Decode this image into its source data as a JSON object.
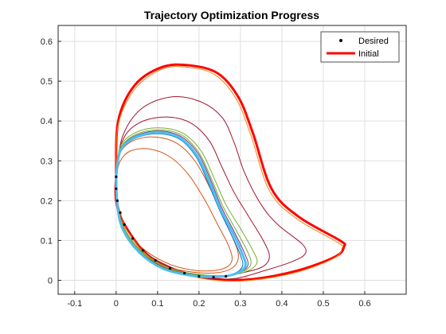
{
  "chart_data": {
    "type": "line",
    "title": "Trajectory Optimization Progress",
    "xlabel": "",
    "ylabel": "",
    "xlim": [
      -0.14,
      0.7
    ],
    "ylim": [
      -0.035,
      0.64
    ],
    "xticks": [
      -0.1,
      0,
      0.1,
      0.2,
      0.3,
      0.4,
      0.5,
      0.6
    ],
    "xtick_labels": [
      "-0.1",
      "0",
      "0.1",
      "0.2",
      "0.3",
      "0.4",
      "0.5",
      "0.6"
    ],
    "yticks": [
      0,
      0.1,
      0.2,
      0.3,
      0.4,
      0.5,
      0.6
    ],
    "ytick_labels": [
      "0",
      "0.1",
      "0.2",
      "0.3",
      "0.4",
      "0.5",
      "0.6"
    ],
    "grid": true,
    "legend": {
      "placement": "top-right",
      "entries": [
        {
          "label": "Desired",
          "marker": "dot",
          "color": "#000000"
        },
        {
          "label": "Initial",
          "marker": "line",
          "color": "#ff0000"
        }
      ]
    },
    "series": [
      {
        "name": "Initial",
        "color": "#ff0000",
        "width": 3,
        "points": [
          [
            0,
            0.26
          ],
          [
            0.005,
            0.4
          ],
          [
            0.045,
            0.49
          ],
          [
            0.11,
            0.535
          ],
          [
            0.175,
            0.54
          ],
          [
            0.245,
            0.52
          ],
          [
            0.295,
            0.46
          ],
          [
            0.33,
            0.37
          ],
          [
            0.375,
            0.23
          ],
          [
            0.44,
            0.16
          ],
          [
            0.54,
            0.1
          ],
          [
            0.55,
            0.085
          ],
          [
            0.53,
            0.06
          ],
          [
            0.44,
            0.025
          ],
          [
            0.33,
            0.003
          ],
          [
            0.24,
            0.003
          ],
          [
            0.16,
            0.02
          ],
          [
            0.08,
            0.06
          ],
          [
            0.02,
            0.14
          ],
          [
            0,
            0.2
          ],
          [
            0,
            0.26
          ]
        ]
      },
      {
        "name": "",
        "color": "#ff7f0e",
        "width": 1,
        "points": [
          [
            0,
            0.26
          ],
          [
            0.005,
            0.39
          ],
          [
            0.045,
            0.48
          ],
          [
            0.11,
            0.53
          ],
          [
            0.175,
            0.535
          ],
          [
            0.24,
            0.515
          ],
          [
            0.29,
            0.455
          ],
          [
            0.325,
            0.365
          ],
          [
            0.37,
            0.225
          ],
          [
            0.435,
            0.155
          ],
          [
            0.535,
            0.095
          ],
          [
            0.545,
            0.08
          ],
          [
            0.525,
            0.055
          ],
          [
            0.435,
            0.02
          ],
          [
            0.325,
            0.0
          ],
          [
            0.24,
            0.0
          ],
          [
            0.16,
            0.017
          ],
          [
            0.08,
            0.058
          ],
          [
            0.02,
            0.138
          ],
          [
            0,
            0.2
          ],
          [
            0,
            0.26
          ]
        ]
      },
      {
        "name": "",
        "color": "#a2142f",
        "width": 1,
        "points": [
          [
            0,
            0.26
          ],
          [
            0.015,
            0.36
          ],
          [
            0.06,
            0.43
          ],
          [
            0.13,
            0.46
          ],
          [
            0.2,
            0.45
          ],
          [
            0.255,
            0.41
          ],
          [
            0.285,
            0.345
          ],
          [
            0.31,
            0.27
          ],
          [
            0.35,
            0.19
          ],
          [
            0.39,
            0.14
          ],
          [
            0.45,
            0.09
          ],
          [
            0.455,
            0.065
          ],
          [
            0.42,
            0.045
          ],
          [
            0.36,
            0.025
          ],
          [
            0.29,
            0.005
          ],
          [
            0.22,
            0.005
          ],
          [
            0.15,
            0.025
          ],
          [
            0.07,
            0.07
          ],
          [
            0.02,
            0.14
          ],
          [
            0,
            0.2
          ],
          [
            0,
            0.26
          ]
        ]
      },
      {
        "name": "",
        "color": "#a2142f",
        "width": 1,
        "points": [
          [
            0,
            0.26
          ],
          [
            0.015,
            0.35
          ],
          [
            0.055,
            0.395
          ],
          [
            0.12,
            0.41
          ],
          [
            0.18,
            0.395
          ],
          [
            0.225,
            0.35
          ],
          [
            0.255,
            0.285
          ],
          [
            0.285,
            0.22
          ],
          [
            0.32,
            0.16
          ],
          [
            0.355,
            0.1
          ],
          [
            0.37,
            0.06
          ],
          [
            0.355,
            0.035
          ],
          [
            0.31,
            0.02
          ],
          [
            0.25,
            0.01
          ],
          [
            0.18,
            0.015
          ],
          [
            0.11,
            0.035
          ],
          [
            0.05,
            0.08
          ],
          [
            0.015,
            0.14
          ],
          [
            0,
            0.2
          ],
          [
            0,
            0.26
          ]
        ]
      },
      {
        "name": "",
        "color": "#d95319",
        "width": 1,
        "points": [
          [
            0,
            0.26
          ],
          [
            0.01,
            0.3
          ],
          [
            0.035,
            0.325
          ],
          [
            0.08,
            0.33
          ],
          [
            0.13,
            0.31
          ],
          [
            0.175,
            0.265
          ],
          [
            0.215,
            0.2
          ],
          [
            0.245,
            0.14
          ],
          [
            0.27,
            0.09
          ],
          [
            0.28,
            0.055
          ],
          [
            0.27,
            0.035
          ],
          [
            0.24,
            0.025
          ],
          [
            0.19,
            0.025
          ],
          [
            0.13,
            0.04
          ],
          [
            0.07,
            0.075
          ],
          [
            0.03,
            0.12
          ],
          [
            0.01,
            0.17
          ],
          [
            0,
            0.22
          ],
          [
            0,
            0.26
          ]
        ]
      },
      {
        "name": "",
        "color": "#d95319",
        "width": 1,
        "points": [
          [
            0,
            0.26
          ],
          [
            0.01,
            0.32
          ],
          [
            0.04,
            0.35
          ],
          [
            0.09,
            0.36
          ],
          [
            0.145,
            0.345
          ],
          [
            0.19,
            0.3
          ],
          [
            0.225,
            0.235
          ],
          [
            0.255,
            0.165
          ],
          [
            0.28,
            0.11
          ],
          [
            0.295,
            0.065
          ],
          [
            0.285,
            0.035
          ],
          [
            0.25,
            0.02
          ],
          [
            0.19,
            0.02
          ],
          [
            0.12,
            0.035
          ],
          [
            0.06,
            0.07
          ],
          [
            0.02,
            0.13
          ],
          [
            0.005,
            0.19
          ],
          [
            0,
            0.26
          ]
        ]
      },
      {
        "name": "",
        "color": "#77ac30",
        "width": 1,
        "points": [
          [
            0,
            0.26
          ],
          [
            0.01,
            0.335
          ],
          [
            0.045,
            0.37
          ],
          [
            0.1,
            0.383
          ],
          [
            0.16,
            0.37
          ],
          [
            0.205,
            0.325
          ],
          [
            0.235,
            0.26
          ],
          [
            0.265,
            0.19
          ],
          [
            0.3,
            0.13
          ],
          [
            0.33,
            0.075
          ],
          [
            0.34,
            0.045
          ],
          [
            0.32,
            0.025
          ],
          [
            0.27,
            0.012
          ],
          [
            0.2,
            0.015
          ],
          [
            0.13,
            0.03
          ],
          [
            0.065,
            0.07
          ],
          [
            0.02,
            0.13
          ],
          [
            0.003,
            0.19
          ],
          [
            0,
            0.26
          ]
        ]
      },
      {
        "name": "",
        "color": "#77ac30",
        "width": 1,
        "points": [
          [
            0,
            0.26
          ],
          [
            0.01,
            0.33
          ],
          [
            0.045,
            0.365
          ],
          [
            0.1,
            0.378
          ],
          [
            0.158,
            0.365
          ],
          [
            0.2,
            0.32
          ],
          [
            0.23,
            0.255
          ],
          [
            0.258,
            0.185
          ],
          [
            0.29,
            0.125
          ],
          [
            0.318,
            0.07
          ],
          [
            0.325,
            0.04
          ],
          [
            0.305,
            0.022
          ],
          [
            0.26,
            0.012
          ],
          [
            0.19,
            0.015
          ],
          [
            0.12,
            0.032
          ],
          [
            0.06,
            0.072
          ],
          [
            0.018,
            0.13
          ],
          [
            0.003,
            0.19
          ],
          [
            0,
            0.26
          ]
        ]
      },
      {
        "name": "",
        "color": "#7e2f8e",
        "width": 1,
        "points": [
          [
            0,
            0.26
          ],
          [
            0.01,
            0.328
          ],
          [
            0.045,
            0.362
          ],
          [
            0.1,
            0.375
          ],
          [
            0.155,
            0.362
          ],
          [
            0.198,
            0.318
          ],
          [
            0.228,
            0.252
          ],
          [
            0.255,
            0.182
          ],
          [
            0.285,
            0.122
          ],
          [
            0.31,
            0.068
          ],
          [
            0.318,
            0.038
          ],
          [
            0.298,
            0.02
          ],
          [
            0.255,
            0.01
          ],
          [
            0.185,
            0.013
          ],
          [
            0.115,
            0.03
          ],
          [
            0.058,
            0.07
          ],
          [
            0.017,
            0.128
          ],
          [
            0.003,
            0.19
          ],
          [
            0,
            0.26
          ]
        ]
      },
      {
        "name": "",
        "color": "#0072bd",
        "width": 1,
        "points": [
          [
            0,
            0.26
          ],
          [
            0.01,
            0.322
          ],
          [
            0.043,
            0.355
          ],
          [
            0.098,
            0.368
          ],
          [
            0.152,
            0.355
          ],
          [
            0.193,
            0.31
          ],
          [
            0.222,
            0.245
          ],
          [
            0.25,
            0.175
          ],
          [
            0.278,
            0.115
          ],
          [
            0.3,
            0.063
          ],
          [
            0.305,
            0.035
          ],
          [
            0.285,
            0.017
          ],
          [
            0.245,
            0.008
          ],
          [
            0.18,
            0.012
          ],
          [
            0.11,
            0.03
          ],
          [
            0.055,
            0.07
          ],
          [
            0.016,
            0.128
          ],
          [
            0.003,
            0.19
          ],
          [
            0,
            0.26
          ]
        ]
      },
      {
        "name": "",
        "color": "#4dbeee",
        "width": 3,
        "points": [
          [
            0,
            0.26
          ],
          [
            0.01,
            0.325
          ],
          [
            0.044,
            0.358
          ],
          [
            0.099,
            0.371
          ],
          [
            0.153,
            0.358
          ],
          [
            0.195,
            0.313
          ],
          [
            0.225,
            0.248
          ],
          [
            0.252,
            0.178
          ],
          [
            0.282,
            0.118
          ],
          [
            0.305,
            0.065
          ],
          [
            0.312,
            0.036
          ],
          [
            0.292,
            0.018
          ],
          [
            0.25,
            0.009
          ],
          [
            0.182,
            0.012
          ],
          [
            0.112,
            0.03
          ],
          [
            0.056,
            0.07
          ],
          [
            0.016,
            0.128
          ],
          [
            0.003,
            0.19
          ],
          [
            0,
            0.26
          ]
        ]
      }
    ],
    "desired_points": [
      [
        0,
        0.26
      ],
      [
        0,
        0.23
      ],
      [
        0.003,
        0.2
      ],
      [
        0.01,
        0.17
      ],
      [
        0.02,
        0.14
      ],
      [
        0.04,
        0.105
      ],
      [
        0.065,
        0.075
      ],
      [
        0.095,
        0.05
      ],
      [
        0.13,
        0.03
      ],
      [
        0.165,
        0.018
      ],
      [
        0.2,
        0.01
      ],
      [
        0.235,
        0.008
      ],
      [
        0.265,
        0.01
      ]
    ],
    "colors": {
      "axis": "#262626",
      "grid": "#dfdfdf",
      "desired": "#000000"
    }
  }
}
